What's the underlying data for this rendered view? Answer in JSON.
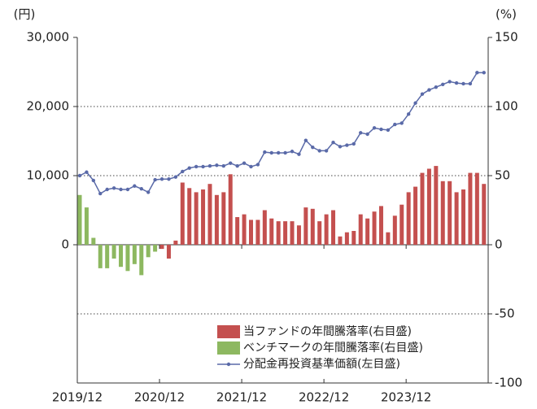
{
  "chart_data": {
    "type": "bar_line_combo",
    "y_unit": "(円)",
    "y2_unit": "(%)",
    "categories": [
      "2019/12",
      null,
      null,
      null,
      null,
      null,
      null,
      null,
      null,
      null,
      null,
      null,
      "2020/12",
      null,
      null,
      null,
      null,
      null,
      null,
      null,
      null,
      null,
      null,
      null,
      "2021/12",
      null,
      null,
      null,
      null,
      null,
      null,
      null,
      null,
      null,
      null,
      null,
      "2022/12",
      null,
      null,
      null,
      null,
      null,
      null,
      null,
      null,
      null,
      null,
      null,
      "2023/12",
      null,
      null,
      null,
      null,
      null,
      null,
      null,
      null,
      null,
      null,
      null
    ],
    "ylim": [
      -20000,
      30000
    ],
    "yticks": [
      {
        "value": 0,
        "label": "0"
      },
      {
        "value": 10000,
        "label": "10,000"
      },
      {
        "value": 20000,
        "label": "20,000"
      },
      {
        "value": 30000,
        "label": "30,000"
      }
    ],
    "y2lim": [
      -100,
      150
    ],
    "y2ticks": [
      -100,
      -50,
      0,
      50,
      100,
      150
    ],
    "grid": true,
    "series": [
      {
        "name": "当ファンドの年間騰落率(右目盛)",
        "color": "#c4504f",
        "axis": "y2",
        "kind": "bar",
        "values": [
          null,
          null,
          null,
          null,
          null,
          null,
          null,
          null,
          null,
          null,
          null,
          null,
          -3,
          -10,
          3,
          45,
          41,
          38,
          40,
          44,
          36,
          38,
          51,
          20,
          22,
          18,
          18,
          25,
          19,
          17,
          17,
          17,
          14,
          27,
          26,
          17,
          22,
          25,
          6,
          9,
          10,
          22,
          19,
          24,
          28,
          9,
          21,
          29,
          38,
          42,
          52,
          55,
          57,
          46,
          46,
          38,
          40,
          52,
          52,
          44
        ]
      },
      {
        "name": "ベンチマークの年間騰落率(右目盛)",
        "color": "#8db860",
        "axis": "y2",
        "kind": "bar",
        "values": [
          36,
          27,
          5,
          -17,
          -17,
          -10,
          -16,
          -19,
          -14,
          -22,
          -9,
          -5,
          null,
          null,
          null,
          null,
          null,
          null,
          null,
          null,
          null,
          null,
          null,
          null,
          null,
          null,
          null,
          null,
          null,
          null,
          null,
          null,
          null,
          null,
          null,
          null,
          null,
          null,
          null,
          null,
          null,
          null,
          null,
          null,
          null,
          null,
          null,
          null,
          null,
          null,
          null,
          null,
          null,
          null,
          null,
          null,
          null,
          null,
          null,
          null
        ]
      },
      {
        "name": "分配金再投資基準価額(左目盛)",
        "color": "#5a6aa8",
        "axis": "y",
        "kind": "line",
        "values": [
          10000,
          10500,
          9300,
          7400,
          8000,
          8200,
          8000,
          8000,
          8500,
          8100,
          7600,
          9400,
          9500,
          9500,
          9800,
          10600,
          11100,
          11300,
          11300,
          11400,
          11500,
          11400,
          11800,
          11400,
          11800,
          11300,
          11600,
          13400,
          13300,
          13300,
          13300,
          13500,
          13100,
          15100,
          14100,
          13600,
          13600,
          14800,
          14200,
          14400,
          14600,
          16200,
          16000,
          16900,
          16700,
          16600,
          17400,
          17600,
          18900,
          20500,
          21800,
          22400,
          22800,
          23200,
          23600,
          23400,
          23300,
          23300,
          24900,
          24900
        ]
      }
    ]
  }
}
